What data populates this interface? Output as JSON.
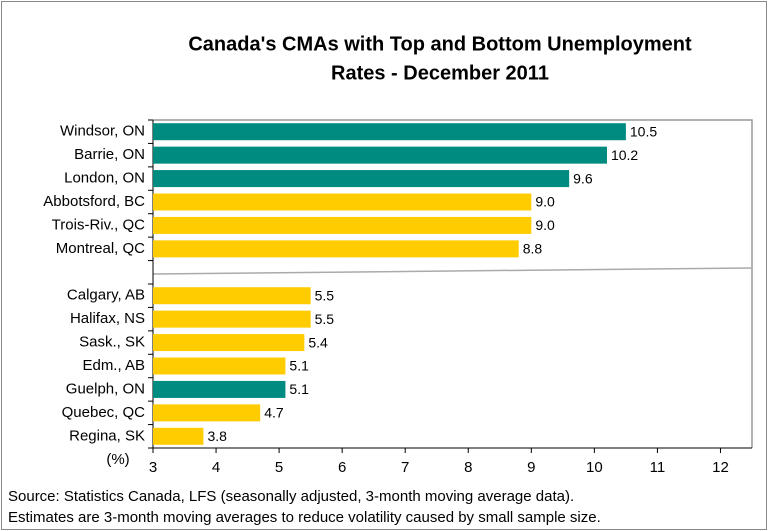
{
  "chart_data": {
    "type": "bar",
    "orientation": "horizontal",
    "title": "Canada's CMAs with Top and Bottom Unemployment",
    "subtitle": "Rates - December 2011",
    "x_label": "(%)",
    "categories": [
      "Windsor, ON",
      "Barrie, ON",
      "London, ON",
      "Abbotsford, BC",
      "Trois-Riv., QC",
      "Montreal, QC",
      null,
      "Calgary, AB",
      "Halifax, NS",
      "Sask., SK",
      "Edm., AB",
      "Guelph, ON",
      "Quebec, QC",
      "Regina, SK"
    ],
    "values": [
      10.5,
      10.2,
      9.6,
      9.0,
      9.0,
      8.8,
      null,
      5.5,
      5.5,
      5.4,
      5.1,
      5.1,
      4.7,
      3.8
    ],
    "value_labels": [
      "10.5",
      "10.2",
      "9.6",
      "9.0",
      "9.0",
      "8.8",
      null,
      "5.5",
      "5.5",
      "5.4",
      "5.1",
      "5.1",
      "4.7",
      "3.8"
    ],
    "colors": [
      "#008b80",
      "#008b80",
      "#008b80",
      "#ffcc00",
      "#ffcc00",
      "#ffcc00",
      null,
      "#ffcc00",
      "#ffcc00",
      "#ffcc00",
      "#ffcc00",
      "#008b80",
      "#ffcc00",
      "#ffcc00"
    ],
    "xlim": [
      3,
      12.5
    ],
    "xticks": [
      3,
      4,
      5,
      6,
      7,
      8,
      9,
      10,
      11,
      12
    ],
    "notes": [
      "Source: Statistics Canada, LFS (seasonally adjusted, 3-month moving average data).",
      "Estimates are 3-month moving averages to reduce volatility caused by small sample size."
    ]
  }
}
